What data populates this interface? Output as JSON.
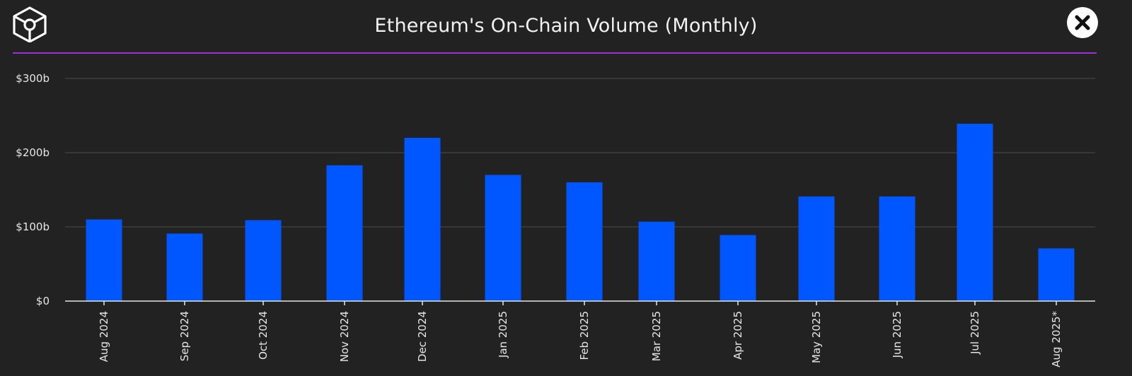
{
  "header": {
    "title": "Ethereum's On-Chain Volume (Monthly)",
    "logo_icon": "cube-logo-icon",
    "close_icon": "close-icon"
  },
  "colors": {
    "background": "#222222",
    "bar": "#0057ff",
    "divider": "#9b30d9",
    "grid": "#4a4a4a",
    "axis": "#e6e6e6",
    "text": "#ffffff"
  },
  "chart_data": {
    "type": "bar",
    "title": "Ethereum's On-Chain Volume (Monthly)",
    "xlabel": "",
    "ylabel": "",
    "ylim": [
      0,
      300
    ],
    "y_ticks": [
      0,
      100,
      200,
      300
    ],
    "y_tick_labels": [
      "$0",
      "$100b",
      "$200b",
      "$300b"
    ],
    "grid": true,
    "legend": "none",
    "categories": [
      "Aug 2024",
      "Sep 2024",
      "Oct 2024",
      "Nov 2024",
      "Dec 2024",
      "Jan 2025",
      "Feb 2025",
      "Mar 2025",
      "Apr 2025",
      "May 2025",
      "Jun 2025",
      "Jul 2025",
      "Aug 2025*"
    ],
    "values": [
      110,
      91,
      109,
      183,
      220,
      170,
      160,
      107,
      89,
      141,
      141,
      239,
      71
    ],
    "units": "billion USD"
  }
}
